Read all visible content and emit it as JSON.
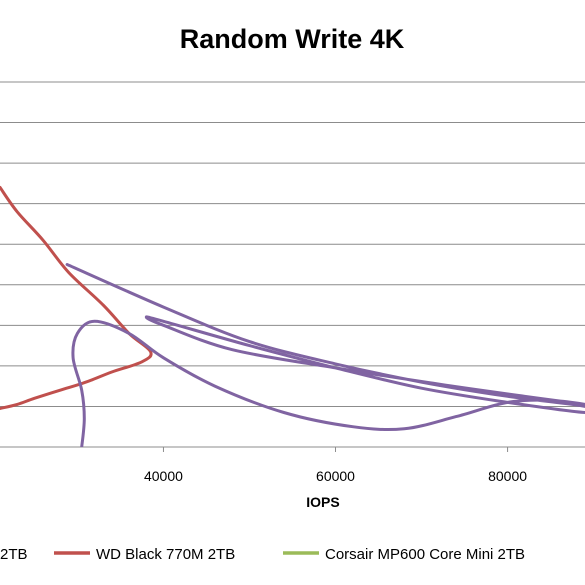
{
  "chart_data": {
    "type": "line",
    "title": "Random Write 4K",
    "xlabel": "IOPS",
    "ylabel": "",
    "xlim": [
      21000,
      89000
    ],
    "ylim": [
      0,
      9
    ],
    "x_ticks": [
      40000,
      60000,
      80000
    ],
    "x_tick_labels": [
      "40000",
      "60000",
      "80000"
    ],
    "y_gridlines": [
      1,
      2,
      3,
      4,
      5,
      6,
      7,
      8,
      9
    ],
    "grid": true,
    "legend": {
      "position": "bottom",
      "visible_entries": [
        "2TB",
        "WD Black 770M 2TB",
        "Corsair MP600 Core Mini 2TB"
      ]
    },
    "series": [
      {
        "name": "2TB",
        "color": "#4f81bd",
        "points": []
      },
      {
        "name": "WD Black 770M 2TB",
        "color": "#c0504d",
        "points": [
          [
            21000,
            6.4
          ],
          [
            23000,
            5.8
          ],
          [
            26000,
            5.1
          ],
          [
            29000,
            4.3
          ],
          [
            33000,
            3.5
          ],
          [
            36000,
            2.8
          ],
          [
            38500,
            2.35
          ],
          [
            37500,
            2.1
          ],
          [
            34000,
            1.85
          ],
          [
            31000,
            1.6
          ],
          [
            28000,
            1.4
          ],
          [
            25000,
            1.2
          ],
          [
            23000,
            1.05
          ],
          [
            21000,
            0.95
          ]
        ]
      },
      {
        "name": "Corsair MP600 Core Mini 2TB",
        "color": "#9bbb59",
        "points": []
      },
      {
        "name": "",
        "color": "#8064a2",
        "points": [
          [
            28800,
            4.5
          ],
          [
            40000,
            3.45
          ],
          [
            50000,
            2.6
          ],
          [
            60000,
            2.05
          ],
          [
            70000,
            1.6
          ],
          [
            80000,
            1.25
          ],
          [
            89000,
            1.0
          ],
          [
            89000,
            0.85
          ],
          [
            80000,
            1.1
          ],
          [
            70000,
            1.45
          ],
          [
            60000,
            1.95
          ],
          [
            50000,
            2.5
          ],
          [
            40000,
            3.1
          ],
          [
            38000,
            3.2
          ],
          [
            40000,
            3.0
          ],
          [
            48000,
            2.4
          ],
          [
            60000,
            1.95
          ],
          [
            72000,
            1.55
          ],
          [
            82000,
            1.25
          ],
          [
            89000,
            1.05
          ],
          [
            85000,
            1.15
          ],
          [
            80000,
            1.1
          ],
          [
            74000,
            0.75
          ],
          [
            68000,
            0.45
          ],
          [
            62000,
            0.5
          ],
          [
            54000,
            0.85
          ],
          [
            46000,
            1.5
          ],
          [
            40000,
            2.2
          ],
          [
            36000,
            2.8
          ],
          [
            32000,
            3.1
          ],
          [
            30000,
            2.8
          ],
          [
            29500,
            2.2
          ],
          [
            30500,
            1.4
          ],
          [
            30800,
            0.7
          ],
          [
            30500,
            0.0
          ]
        ]
      }
    ]
  }
}
